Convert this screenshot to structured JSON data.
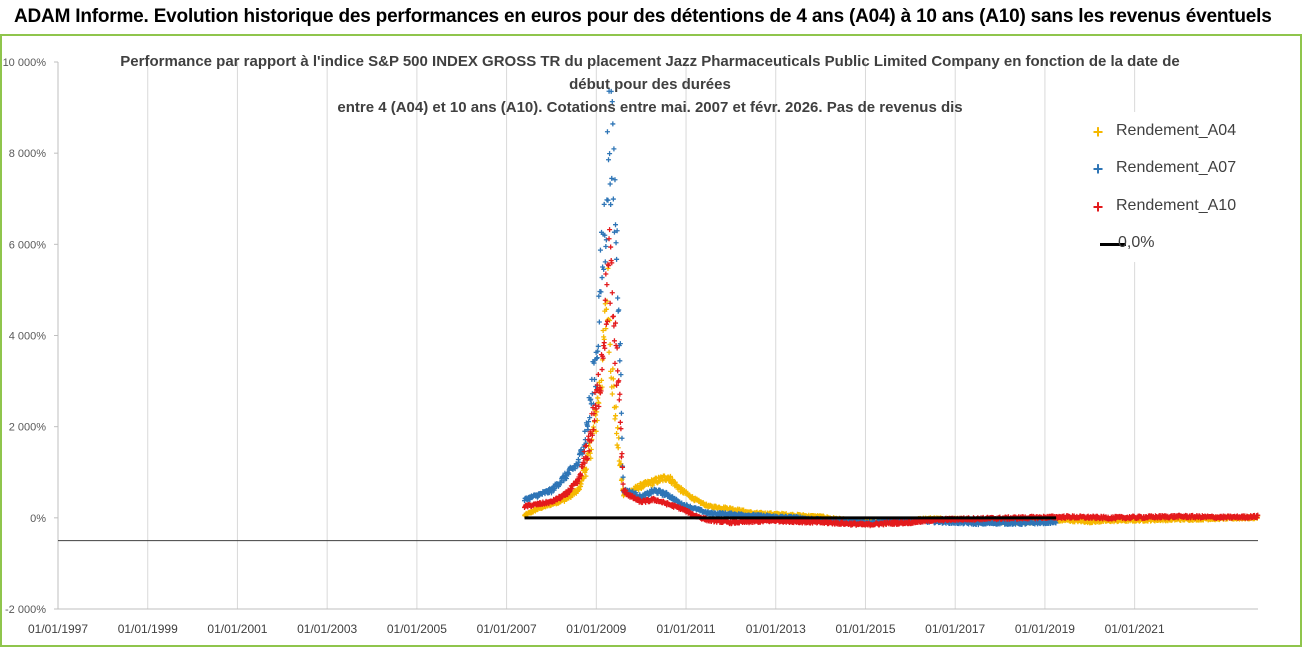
{
  "banner": {
    "title": "ADAM Informe. Evolution historique des performances en euros pour des détentions de 4 ans (A04) à 10 ans (A10) sans les revenus éventuels"
  },
  "colors": {
    "a04": "#f5b800",
    "a07": "#2e75b6",
    "a10": "#e31a1c",
    "zero": "#000000",
    "grid": "#d9d9d9",
    "border": "#8fc54c"
  },
  "chart_data": {
    "type": "scatter",
    "title_lines": [
      "Performance par rapport à l'indice S&P 500 INDEX GROSS TR  du placement Jazz Pharmaceuticals Public Limited Company en fonction de la date de",
      "début pour des durées",
      "entre 4 (A04) et 10 ans (A10). Cotations entre mai. 2007 et févr. 2026. Pas de revenus dis"
    ],
    "xlabel": "",
    "ylabel": "",
    "xlim": [
      1997.0,
      2023.75
    ],
    "ylim": [
      -2000,
      10000
    ],
    "y_ticks": [
      -2000,
      0,
      2000,
      4000,
      6000,
      8000,
      10000
    ],
    "y_tick_labels": [
      "-2 000%",
      "0%",
      "2 000%",
      "4 000%",
      "6 000%",
      "8 000%",
      "10 000%"
    ],
    "x_ticks": [
      1997,
      1999,
      2001,
      2003,
      2005,
      2007,
      2009,
      2011,
      2013,
      2015,
      2017,
      2019,
      2021
    ],
    "x_tick_labels": [
      "01/01/1997",
      "01/01/1999",
      "01/01/2001",
      "01/01/2003",
      "01/01/2005",
      "01/01/2007",
      "01/01/2009",
      "01/01/2011",
      "01/01/2013",
      "01/01/2015",
      "01/01/2017",
      "01/01/2019",
      "01/01/2021"
    ],
    "legend_position": "right",
    "series": [
      {
        "name": "Rendement_A04",
        "marker": "+",
        "x": [
          2007.4,
          2007.7,
          2008.0,
          2008.3,
          2008.6,
          2008.8,
          2009.0,
          2009.15,
          2009.25,
          2009.35,
          2009.45,
          2009.6,
          2009.8,
          2010.0,
          2010.3,
          2010.6,
          2010.9,
          2011.2,
          2011.5,
          2012.0,
          2012.5,
          2013.0,
          2013.5,
          2014.0,
          2014.5,
          2015.0,
          2015.5,
          2016.0,
          2016.5,
          2017.0,
          2017.5,
          2018.0,
          2018.5,
          2019.0,
          2019.5,
          2020.0,
          2020.5,
          2021.0,
          2021.5,
          2022.0,
          2022.5,
          2023.0,
          2023.5,
          2023.75
        ],
        "y": [
          50,
          200,
          300,
          400,
          600,
          1200,
          2200,
          3500,
          5000,
          3200,
          2000,
          500,
          600,
          700,
          800,
          900,
          600,
          400,
          250,
          200,
          100,
          80,
          50,
          20,
          -50,
          -80,
          -100,
          -50,
          -20,
          -30,
          -50,
          -80,
          -100,
          -60,
          -50,
          -80,
          -60,
          -50,
          -40,
          -30,
          -20,
          -10,
          0,
          10
        ]
      },
      {
        "name": "Rendement_A07",
        "marker": "+",
        "x": [
          2007.4,
          2007.7,
          2008.0,
          2008.3,
          2008.6,
          2008.8,
          2009.0,
          2009.1,
          2009.2,
          2009.3,
          2009.4,
          2009.5,
          2009.6,
          2009.8,
          2010.0,
          2010.3,
          2010.6,
          2010.9,
          2011.2,
          2011.5,
          2012.0,
          2012.5,
          2013.0,
          2013.5,
          2014.0,
          2014.5,
          2015.0,
          2015.5,
          2016.0,
          2016.5,
          2017.0,
          2017.5,
          2018.0,
          2018.5,
          2019.0,
          2019.25
        ],
        "y": [
          400,
          500,
          600,
          900,
          1200,
          2000,
          3500,
          5200,
          6500,
          8600,
          7200,
          5000,
          600,
          550,
          450,
          600,
          500,
          300,
          200,
          100,
          80,
          50,
          20,
          0,
          -50,
          -80,
          -100,
          -80,
          -60,
          -80,
          -100,
          -120,
          -110,
          -120,
          -100,
          -90
        ]
      },
      {
        "name": "Rendement_A10",
        "marker": "+",
        "x": [
          2007.4,
          2007.7,
          2008.0,
          2008.3,
          2008.6,
          2008.8,
          2009.0,
          2009.1,
          2009.2,
          2009.3,
          2009.4,
          2009.5,
          2009.6,
          2009.8,
          2010.0,
          2010.3,
          2010.6,
          2010.9,
          2011.2,
          2011.5,
          2012.0,
          2012.5,
          2013.0,
          2013.5,
          2014.0,
          2014.5,
          2015.0,
          2015.5,
          2016.0,
          2016.5,
          2017.0,
          2017.5,
          2018.0,
          2018.5,
          2019.0,
          2019.5,
          2020.0,
          2020.5,
          2021.0,
          2021.5,
          2022.0,
          2022.5,
          2023.0,
          2023.5,
          2023.75
        ],
        "y": [
          250,
          300,
          350,
          500,
          800,
          1500,
          2500,
          3200,
          4500,
          5600,
          4000,
          3000,
          600,
          450,
          350,
          400,
          300,
          200,
          50,
          -50,
          -100,
          -80,
          -60,
          -80,
          -100,
          -120,
          -150,
          -120,
          -100,
          -50,
          -30,
          -20,
          -10,
          0,
          10,
          20,
          10,
          0,
          10,
          20,
          30,
          20,
          10,
          20,
          30
        ]
      },
      {
        "name": "0,0%",
        "type": "line",
        "x": [
          2007.4,
          2019.25
        ],
        "y": [
          0,
          0
        ]
      }
    ]
  }
}
